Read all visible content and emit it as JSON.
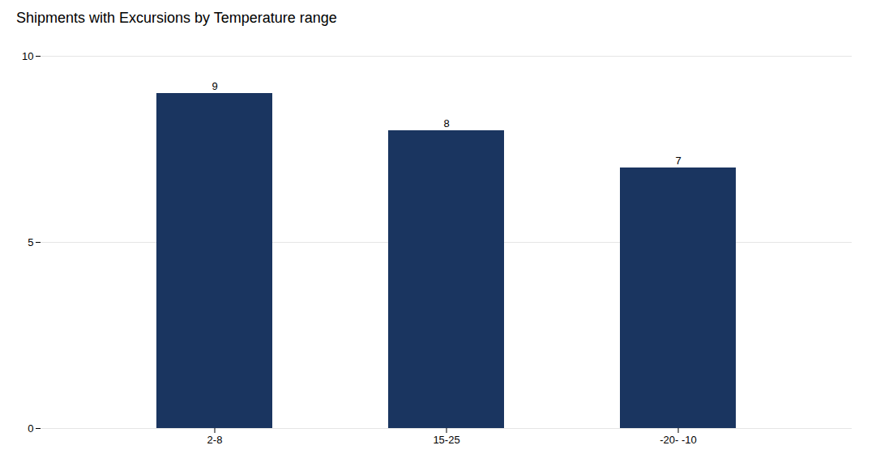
{
  "chart_data": {
    "type": "bar",
    "title": "Shipments with Excursions by Temperature range",
    "categories": [
      "2-8",
      "15-25",
      "-20- -10"
    ],
    "values": [
      9,
      8,
      7
    ],
    "color": "#1a3560",
    "ylim": [
      0,
      10
    ],
    "yticks": [
      0,
      5,
      10
    ],
    "grid": true,
    "data_labels": true
  }
}
